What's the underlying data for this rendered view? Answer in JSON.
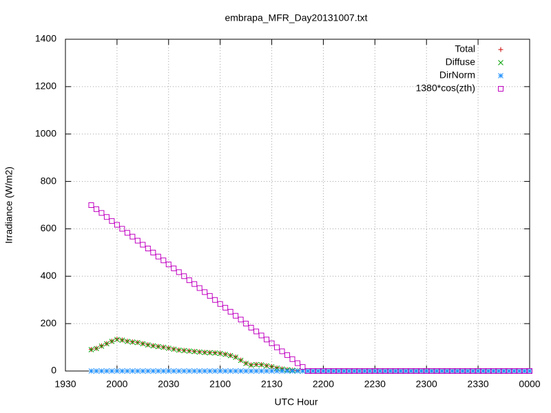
{
  "chart_data": {
    "type": "scatter",
    "title": "embrapa_MFR_Day20131007.txt",
    "x_label": "UTC Hour",
    "y_label": "Irradiance (W/m2)",
    "xlim": [
      19.5,
      24
    ],
    "ylim": [
      0,
      1400
    ],
    "xticks": [
      {
        "value": 19.5,
        "label": "1930"
      },
      {
        "value": 20,
        "label": "2000"
      },
      {
        "value": 20.5,
        "label": "2030"
      },
      {
        "value": 21,
        "label": "2100"
      },
      {
        "value": 21.5,
        "label": "2130"
      },
      {
        "value": 22,
        "label": "2200"
      },
      {
        "value": 22.5,
        "label": "2230"
      },
      {
        "value": 23,
        "label": "2300"
      },
      {
        "value": 23.5,
        "label": "2330"
      },
      {
        "value": 24,
        "label": "0000"
      }
    ],
    "yticks": [
      0,
      200,
      400,
      600,
      800,
      1000,
      1200,
      1400
    ],
    "grid": true,
    "legend": "top-right",
    "x": [
      19.75,
      19.8,
      19.85,
      19.9,
      19.95,
      20,
      20.05,
      20.1,
      20.15,
      20.2,
      20.25,
      20.3,
      20.35,
      20.4,
      20.45,
      20.5,
      20.55,
      20.6,
      20.65,
      20.7,
      20.75,
      20.8,
      20.85,
      20.9,
      20.95,
      21,
      21.05,
      21.1,
      21.15,
      21.2,
      21.25,
      21.3,
      21.35,
      21.4,
      21.45,
      21.5,
      21.55,
      21.6,
      21.65,
      21.7,
      21.75,
      21.8,
      21.85,
      21.9,
      21.95,
      22,
      22.05,
      22.1,
      22.15,
      22.2,
      22.25,
      22.3,
      22.35,
      22.4,
      22.45,
      22.5,
      22.55,
      22.6,
      22.65,
      22.7,
      22.75,
      22.8,
      22.85,
      22.9,
      22.95,
      23,
      23.05,
      23.1,
      23.15,
      23.2,
      23.25,
      23.3,
      23.35,
      23.4,
      23.45,
      23.5,
      23.55,
      23.6,
      23.65,
      23.7,
      23.75,
      23.8,
      23.85,
      23.9,
      23.95,
      24
    ],
    "series": [
      {
        "name": "Total",
        "color": "#cc0000",
        "marker": "plus",
        "values": [
          91,
          96,
          106,
          116,
          126,
          135,
          131,
          126,
          123,
          121,
          116,
          111,
          107,
          104,
          101,
          97,
          93,
          89,
          87,
          85,
          83,
          81,
          79,
          78,
          77,
          75,
          71,
          66,
          59,
          46,
          33,
          26,
          28,
          27,
          23,
          19,
          13,
          9,
          6,
          4,
          2,
          0,
          0,
          0,
          0,
          0,
          0,
          0,
          0,
          0,
          0,
          0,
          0,
          0,
          0,
          0,
          0,
          0,
          0,
          0,
          0,
          0,
          0,
          0,
          0,
          0,
          0,
          0,
          0,
          0,
          0,
          0,
          0,
          0,
          0,
          0,
          0,
          0,
          0,
          0,
          0,
          0,
          0,
          0,
          0,
          0
        ]
      },
      {
        "name": "Diffuse",
        "color": "#00a000",
        "marker": "cross",
        "values": [
          90,
          95,
          105,
          115,
          125,
          133,
          130,
          125,
          122,
          120,
          115,
          110,
          106,
          103,
          100,
          96,
          92,
          88,
          86,
          84,
          82,
          80,
          78,
          77,
          76,
          74,
          70,
          65,
          58,
          45,
          32,
          25,
          27,
          26,
          22,
          18,
          12,
          8,
          5,
          3,
          1,
          0,
          0,
          0,
          0,
          0,
          0,
          0,
          0,
          0,
          0,
          0,
          0,
          0,
          0,
          0,
          0,
          0,
          0,
          0,
          0,
          0,
          0,
          0,
          0,
          0,
          0,
          0,
          0,
          0,
          0,
          0,
          0,
          0,
          0,
          0,
          0,
          0,
          0,
          0,
          0,
          0,
          0,
          0,
          0,
          0
        ]
      },
      {
        "name": "DirNorm",
        "color": "#1e90ff",
        "marker": "star",
        "values": [
          0,
          0,
          0,
          0,
          0,
          0,
          0,
          0,
          0,
          0,
          0,
          0,
          0,
          0,
          0,
          0,
          0,
          0,
          0,
          0,
          0,
          0,
          0,
          0,
          0,
          0,
          0,
          0,
          0,
          0,
          0,
          0,
          0,
          0,
          0,
          0,
          0,
          0,
          0,
          0,
          0,
          0,
          0,
          0,
          0,
          0,
          0,
          0,
          0,
          0,
          0,
          0,
          0,
          0,
          0,
          0,
          0,
          0,
          0,
          0,
          0,
          0,
          0,
          0,
          0,
          0,
          0,
          0,
          0,
          0,
          0,
          0,
          0,
          0,
          0,
          0,
          0,
          0,
          0,
          0,
          0,
          0,
          0,
          0,
          0,
          0
        ]
      },
      {
        "name": "1380*cos(zth)",
        "color": "#c000c0",
        "marker": "square",
        "values": [
          700,
          683,
          667,
          650,
          633,
          617,
          600,
          583,
          567,
          550,
          533,
          517,
          500,
          483,
          467,
          450,
          433,
          417,
          400,
          383,
          367,
          350,
          333,
          317,
          300,
          283,
          267,
          250,
          233,
          217,
          200,
          183,
          167,
          150,
          133,
          117,
          100,
          83,
          67,
          50,
          33,
          17,
          0,
          0,
          0,
          0,
          0,
          0,
          0,
          0,
          0,
          0,
          0,
          0,
          0,
          0,
          0,
          0,
          0,
          0,
          0,
          0,
          0,
          0,
          0,
          0,
          0,
          0,
          0,
          0,
          0,
          0,
          0,
          0,
          0,
          0,
          0,
          0,
          0,
          0,
          0,
          0,
          0,
          0,
          0,
          0
        ]
      }
    ]
  }
}
